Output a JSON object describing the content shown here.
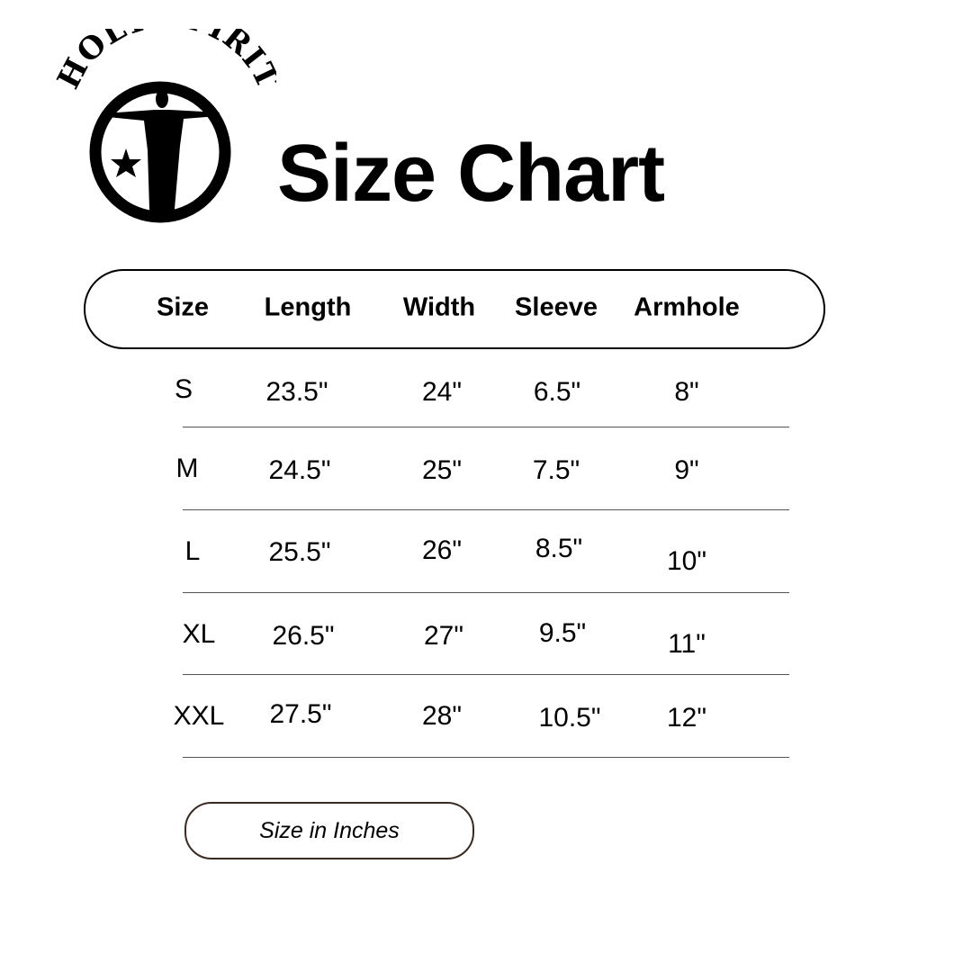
{
  "logo": {
    "text": "HOLY SPIRIT"
  },
  "title": "Size Chart",
  "table": {
    "headers": [
      "Size",
      "Length",
      "Width",
      "Sleeve",
      "Armhole"
    ],
    "rows": [
      [
        "S",
        "23.5\"",
        "24\"",
        "6.5\"",
        "8\""
      ],
      [
        "M",
        "24.5\"",
        "25\"",
        "7.5\"",
        "9\""
      ],
      [
        "L",
        "25.5\"",
        "26\"",
        "8.5\"",
        "10\""
      ],
      [
        "XL",
        "26.5\"",
        "27\"",
        "9.5\"",
        "11\""
      ],
      [
        "XXL",
        "27.5\"",
        "28\"",
        "10.5\"",
        "12\""
      ]
    ]
  },
  "units_label": "Size in Inches"
}
